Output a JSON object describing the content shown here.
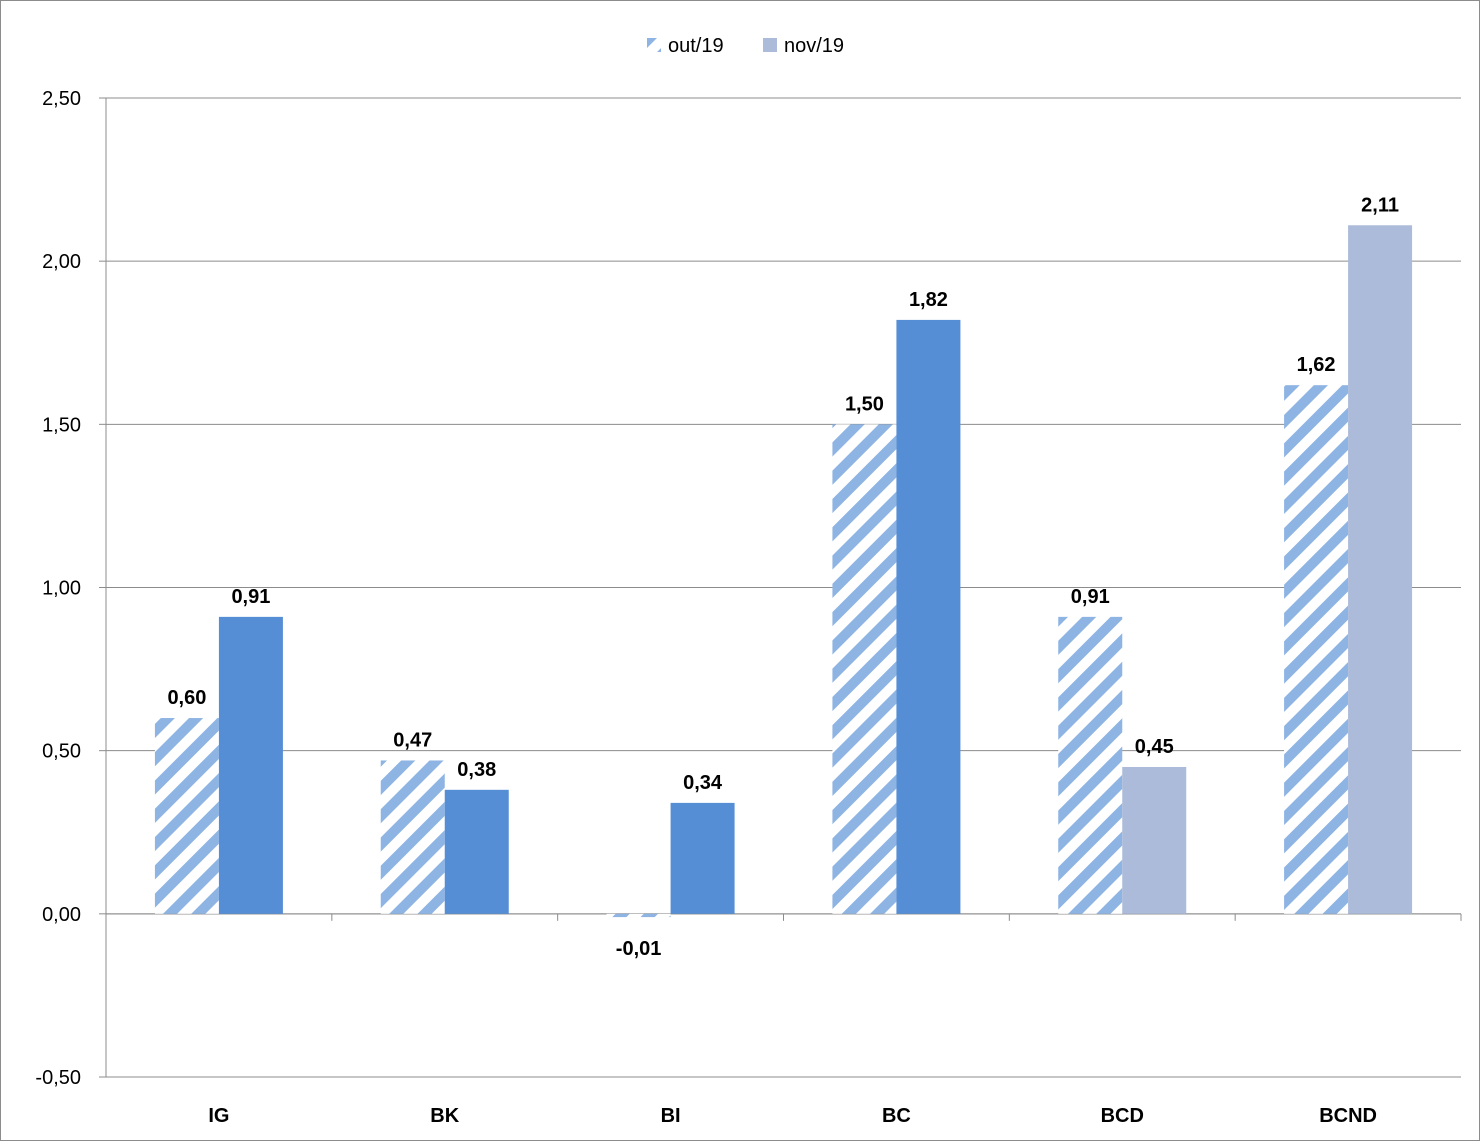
{
  "chart_data": {
    "type": "bar",
    "categories": [
      "IG",
      "BK",
      "BI",
      "BC",
      "BCD",
      "BCND"
    ],
    "series": [
      {
        "name": "out/19",
        "values": [
          0.6,
          0.47,
          -0.01,
          1.5,
          0.91,
          1.62
        ],
        "labels": [
          "0,60",
          "0,47",
          "-0,01",
          "1,50",
          "0,91",
          "1,62"
        ],
        "color": "#5b8fd6",
        "pattern": "diagonal-stripes"
      },
      {
        "name": "nov/19",
        "values": [
          0.91,
          0.38,
          0.34,
          1.82,
          0.45,
          2.11
        ],
        "labels": [
          "0,91",
          "0,38",
          "0,34",
          "1,82",
          "0,45",
          "2,11"
        ],
        "color": "#558ed5",
        "point_colors": [
          "#558ed5",
          "#558ed5",
          "#558ed5",
          "#558ed5",
          "#abbbd9",
          "#abbbd9"
        ]
      }
    ],
    "legend_color_nov": "#abbbd9",
    "ylim": [
      -0.5,
      2.5
    ],
    "yticks": [
      -0.5,
      0.0,
      0.5,
      1.0,
      1.5,
      2.0,
      2.5
    ],
    "ytick_labels": [
      "-0,50",
      "0,00",
      "0,50",
      "1,00",
      "1,50",
      "2,00",
      "2,50"
    ],
    "grid": true,
    "legend_position": "top-center",
    "title": "",
    "xlabel": "",
    "ylabel": ""
  }
}
